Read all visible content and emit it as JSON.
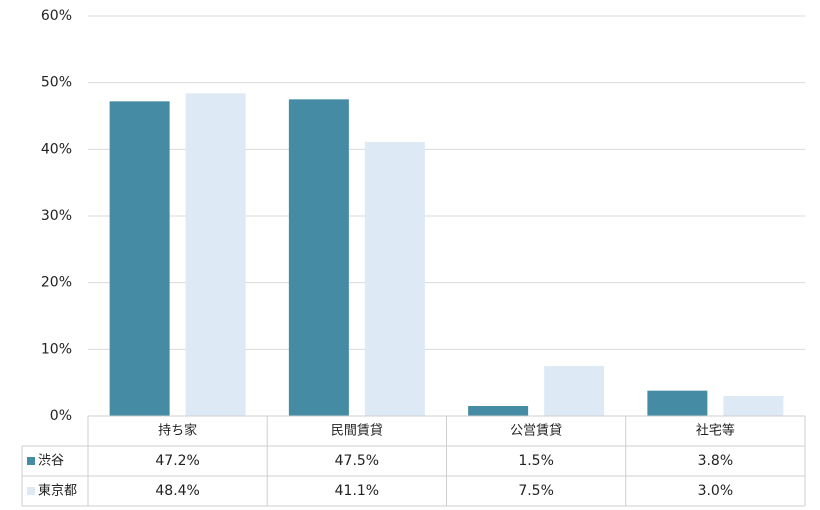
{
  "chart_data": {
    "type": "bar",
    "categories": [
      "持ち家",
      "民間賃貸",
      "公営賃貸",
      "社宅等"
    ],
    "series": [
      {
        "name": "渋谷",
        "color": "#468ba4",
        "values": [
          47.2,
          47.5,
          1.5,
          3.8
        ],
        "value_labels": [
          "47.2%",
          "47.5%",
          "1.5%",
          "3.8%"
        ]
      },
      {
        "name": "東京都",
        "color": "#dde9f5",
        "values": [
          48.4,
          41.1,
          7.5,
          3.0
        ],
        "value_labels": [
          "48.4%",
          "41.1%",
          "7.5%",
          "3.0%"
        ]
      }
    ],
    "ylim": [
      0,
      60
    ],
    "yticks": [
      {
        "value": 0,
        "label": "0%"
      },
      {
        "value": 10,
        "label": "10%"
      },
      {
        "value": 20,
        "label": "20%"
      },
      {
        "value": 30,
        "label": "30%"
      },
      {
        "value": 40,
        "label": "40%"
      },
      {
        "value": 50,
        "label": "50%"
      },
      {
        "value": 60,
        "label": "60%"
      }
    ],
    "grid": true,
    "data_table": true
  }
}
